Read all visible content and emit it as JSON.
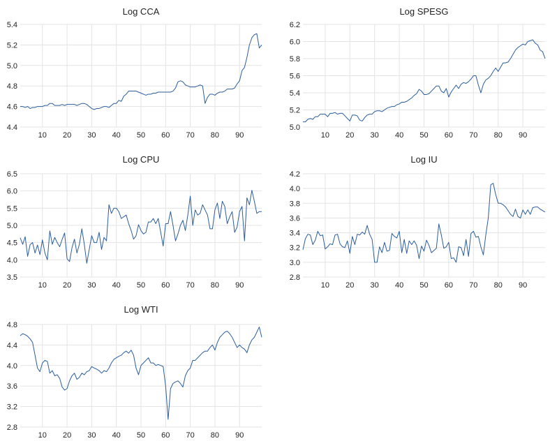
{
  "chart_data": [
    {
      "type": "line",
      "title": "Log CCA",
      "xlim": [
        1,
        99
      ],
      "ylim": [
        4.4,
        5.4
      ],
      "xticks": [
        10,
        20,
        30,
        40,
        50,
        60,
        70,
        80,
        90
      ],
      "yticks": [
        4.4,
        4.6,
        4.8,
        5.0,
        5.2,
        5.4
      ],
      "ytick_labels": [
        "4.4",
        "4.6",
        "4.8",
        "5.0",
        "5.2",
        "5.4"
      ],
      "grid": true,
      "series": [
        {
          "values": [
            4.6,
            4.6,
            4.59,
            4.6,
            4.58,
            4.59,
            4.59,
            4.6,
            4.6,
            4.6,
            4.61,
            4.61,
            4.63,
            4.63,
            4.61,
            4.61,
            4.61,
            4.62,
            4.61,
            4.62,
            4.62,
            4.62,
            4.62,
            4.61,
            4.62,
            4.63,
            4.63,
            4.62,
            4.6,
            4.58,
            4.57,
            4.58,
            4.58,
            4.59,
            4.6,
            4.6,
            4.59,
            4.61,
            4.63,
            4.63,
            4.66,
            4.65,
            4.7,
            4.72,
            4.75,
            4.75,
            4.75,
            4.75,
            4.74,
            4.73,
            4.72,
            4.71,
            4.72,
            4.72,
            4.73,
            4.73,
            4.74,
            4.74,
            4.74,
            4.74,
            4.74,
            4.74,
            4.75,
            4.78,
            4.84,
            4.85,
            4.84,
            4.81,
            4.8,
            4.79,
            4.79,
            4.79,
            4.8,
            4.81,
            4.8,
            4.63,
            4.69,
            4.72,
            4.72,
            4.71,
            4.73,
            4.74,
            4.74,
            4.75,
            4.77,
            4.77,
            4.77,
            4.78,
            4.82,
            4.85,
            4.95,
            4.98,
            5.08,
            5.2,
            5.27,
            5.3,
            5.31,
            5.17,
            5.2
          ]
        }
      ]
    },
    {
      "type": "line",
      "title": "Log SPESG",
      "xlim": [
        1,
        99
      ],
      "ylim": [
        5.0,
        6.2
      ],
      "xticks": [
        10,
        20,
        30,
        40,
        50,
        60,
        70,
        80,
        90
      ],
      "yticks": [
        5.0,
        5.2,
        5.4,
        5.6,
        5.8,
        6.0,
        6.2
      ],
      "ytick_labels": [
        "5.0",
        "5.2",
        "5.4",
        "5.6",
        "5.8",
        "6.0",
        "6.2"
      ],
      "grid": true,
      "series": [
        {
          "values": [
            5.06,
            5.06,
            5.09,
            5.1,
            5.09,
            5.12,
            5.12,
            5.15,
            5.15,
            5.15,
            5.12,
            5.16,
            5.16,
            5.17,
            5.15,
            5.16,
            5.16,
            5.13,
            5.1,
            5.07,
            5.14,
            5.14,
            5.13,
            5.08,
            5.07,
            5.11,
            5.14,
            5.15,
            5.15,
            5.18,
            5.19,
            5.19,
            5.18,
            5.2,
            5.22,
            5.23,
            5.24,
            5.24,
            5.26,
            5.27,
            5.29,
            5.29,
            5.3,
            5.32,
            5.34,
            5.37,
            5.39,
            5.44,
            5.42,
            5.38,
            5.38,
            5.39,
            5.42,
            5.45,
            5.48,
            5.48,
            5.42,
            5.4,
            5.45,
            5.35,
            5.41,
            5.45,
            5.49,
            5.45,
            5.5,
            5.52,
            5.51,
            5.53,
            5.56,
            5.6,
            5.6,
            5.49,
            5.4,
            5.5,
            5.55,
            5.57,
            5.6,
            5.65,
            5.69,
            5.65,
            5.7,
            5.75,
            5.75,
            5.76,
            5.8,
            5.85,
            5.9,
            5.93,
            5.95,
            5.97,
            5.96,
            6.0,
            6.01,
            6.02,
            5.98,
            5.96,
            5.9,
            5.88,
            5.8
          ]
        }
      ]
    },
    {
      "type": "line",
      "title": "Log CPU",
      "xlim": [
        1,
        99
      ],
      "ylim": [
        3.5,
        6.5
      ],
      "xticks": [
        10,
        20,
        30,
        40,
        50,
        60,
        70,
        80,
        90
      ],
      "yticks": [
        3.5,
        4.0,
        4.5,
        5.0,
        5.5,
        6.0,
        6.5
      ],
      "ytick_labels": [
        "3.5",
        "4.0",
        "4.5",
        "5.0",
        "5.5",
        "6.0",
        "6.5"
      ],
      "grid": true,
      "series": [
        {
          "values": [
            4.64,
            4.45,
            4.67,
            4.1,
            4.44,
            4.5,
            4.2,
            4.43,
            4.15,
            4.58,
            4.2,
            4.0,
            4.84,
            4.45,
            4.65,
            4.5,
            4.38,
            4.59,
            4.78,
            4.03,
            3.95,
            4.35,
            4.6,
            4.2,
            4.45,
            4.9,
            4.45,
            3.9,
            4.3,
            4.7,
            4.5,
            4.5,
            4.8,
            4.3,
            4.65,
            4.55,
            5.6,
            5.35,
            5.5,
            5.5,
            5.4,
            5.2,
            5.25,
            5.3,
            5.05,
            4.85,
            4.6,
            4.7,
            5.02,
            4.85,
            4.75,
            4.8,
            5.1,
            5.1,
            5.2,
            5.05,
            5.2,
            4.8,
            4.4,
            5.05,
            5.05,
            5.4,
            5.0,
            4.55,
            4.75,
            5.0,
            5.15,
            4.85,
            5.3,
            5.85,
            5.0,
            5.45,
            5.3,
            5.35,
            5.6,
            5.45,
            5.3,
            4.9,
            4.9,
            5.45,
            5.65,
            5.2,
            5.7,
            5.55,
            5.05,
            5.25,
            5.4,
            4.8,
            4.95,
            5.4,
            5.55,
            4.55,
            5.8,
            5.6,
            6.02,
            5.7,
            5.35,
            5.4,
            5.4
          ]
        }
      ]
    },
    {
      "type": "line",
      "title": "Log IU",
      "xlim": [
        1,
        99
      ],
      "ylim": [
        2.8,
        4.2
      ],
      "xticks": [
        10,
        20,
        30,
        40,
        50,
        60,
        70,
        80,
        90
      ],
      "yticks": [
        2.8,
        3.0,
        3.2,
        3.4,
        3.6,
        3.8,
        4.0,
        4.2
      ],
      "ytick_labels": [
        "2.8",
        "3.0",
        "3.2",
        "3.4",
        "3.6",
        "3.8",
        "4.0",
        "4.2"
      ],
      "grid": true,
      "series": [
        {
          "values": [
            3.17,
            3.32,
            3.38,
            3.37,
            3.24,
            3.3,
            3.42,
            3.36,
            3.37,
            3.18,
            3.21,
            3.25,
            3.24,
            3.37,
            3.38,
            3.25,
            3.21,
            3.2,
            3.29,
            3.12,
            3.35,
            3.24,
            3.38,
            3.37,
            3.41,
            3.38,
            3.5,
            3.38,
            3.31,
            3.0,
            3.0,
            3.21,
            3.13,
            3.27,
            3.15,
            3.16,
            3.39,
            3.35,
            3.33,
            3.42,
            3.13,
            3.31,
            3.12,
            3.29,
            3.24,
            3.29,
            3.23,
            3.05,
            3.22,
            3.15,
            3.3,
            3.23,
            3.13,
            3.16,
            3.19,
            3.52,
            3.37,
            3.19,
            3.21,
            3.27,
            3.05,
            3.06,
            3.0,
            3.21,
            3.2,
            3.09,
            3.31,
            3.08,
            3.39,
            3.42,
            3.34,
            3.35,
            3.21,
            3.1,
            3.37,
            3.6,
            4.05,
            4.07,
            3.92,
            3.8,
            3.8,
            3.78,
            3.75,
            3.7,
            3.65,
            3.62,
            3.72,
            3.62,
            3.6,
            3.71,
            3.65,
            3.71,
            3.65,
            3.74,
            3.75,
            3.75,
            3.72,
            3.7,
            3.68
          ]
        }
      ]
    },
    {
      "type": "line",
      "title": "Log WTI",
      "xlim": [
        1,
        99
      ],
      "ylim": [
        2.8,
        4.8
      ],
      "xticks": [
        10,
        20,
        30,
        40,
        50,
        60,
        70,
        80,
        90
      ],
      "yticks": [
        2.8,
        3.2,
        3.6,
        4.0,
        4.4,
        4.8
      ],
      "ytick_labels": [
        "2.8",
        "3.2",
        "3.6",
        "4.0",
        "4.4",
        "4.8"
      ],
      "grid": true,
      "series": [
        {
          "values": [
            4.58,
            4.62,
            4.6,
            4.57,
            4.52,
            4.45,
            4.2,
            3.95,
            3.88,
            4.05,
            4.1,
            4.08,
            3.85,
            3.9,
            3.8,
            3.82,
            3.75,
            3.58,
            3.52,
            3.55,
            3.7,
            3.8,
            3.85,
            3.73,
            3.77,
            3.85,
            3.82,
            3.88,
            3.9,
            3.98,
            3.95,
            3.93,
            3.9,
            3.85,
            3.9,
            3.88,
            3.95,
            4.05,
            4.12,
            4.15,
            4.18,
            4.2,
            4.25,
            4.28,
            4.24,
            4.3,
            4.2,
            3.95,
            3.82,
            4.0,
            4.05,
            4.1,
            4.15,
            4.05,
            4.05,
            4.0,
            4.02,
            4.0,
            3.98,
            3.6,
            2.95,
            3.55,
            3.65,
            3.68,
            3.7,
            3.65,
            3.58,
            3.8,
            3.9,
            3.95,
            4.1,
            4.1,
            4.15,
            4.2,
            4.25,
            4.28,
            4.28,
            4.35,
            4.4,
            4.3,
            4.45,
            4.55,
            4.6,
            4.65,
            4.67,
            4.62,
            4.55,
            4.45,
            4.35,
            4.4,
            4.35,
            4.32,
            4.25,
            4.4,
            4.5,
            4.55,
            4.65,
            4.75,
            4.55
          ]
        }
      ]
    }
  ]
}
